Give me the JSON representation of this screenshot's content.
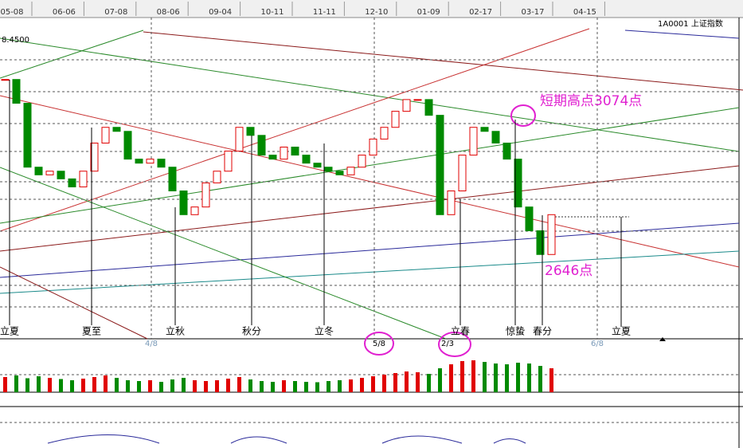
{
  "header": {
    "dates": [
      "05-08",
      "06-06",
      "07-08",
      "08-06",
      "09-04",
      "10-11",
      "11-11",
      "12-10",
      "01-09",
      "02-17",
      "03-17",
      "04-15"
    ],
    "symbol": "1A0001 上证指数",
    "price_label": "8.4500"
  },
  "chart_data": {
    "type": "candlestick",
    "values": [
      3193,
      3122,
      2931,
      2908,
      2919,
      2896,
      2872,
      2919,
      3003,
      3050,
      3038,
      2955,
      2943,
      2955,
      2931,
      2860,
      2789,
      2812,
      2884,
      2919,
      2979,
      3050,
      3026,
      2967,
      2955,
      2991,
      2967,
      2943,
      2931,
      2919,
      2908,
      2931,
      2967,
      3015,
      3050,
      3098,
      3133,
      3133,
      3086,
      2789,
      2860,
      2967,
      3050,
      3038,
      3003,
      2955,
      2812,
      2741,
      2670,
      2789
    ],
    "ylim": [
      2430,
      3340
    ],
    "volume": [
      38,
      42,
      35,
      40,
      36,
      33,
      30,
      34,
      38,
      42,
      36,
      30,
      28,
      30,
      26,
      32,
      36,
      30,
      28,
      30,
      34,
      38,
      32,
      28,
      26,
      30,
      28,
      26,
      25,
      28,
      30,
      32,
      36,
      40,
      44,
      48,
      52,
      50,
      46,
      60,
      70,
      78,
      80,
      76,
      72,
      70,
      74,
      72,
      66,
      60
    ],
    "volume_lim": [
      0,
      100
    ],
    "annotations": {
      "high": "短期高点3074点",
      "low": "2646点"
    },
    "solar_terms": [
      "立夏",
      "夏至",
      "立秋",
      "秋分",
      "立冬",
      "立春",
      "惊蛰",
      "春分",
      "立夏"
    ],
    "markers": [
      "4/8",
      "5/8",
      "2/3",
      "6/8"
    ]
  }
}
